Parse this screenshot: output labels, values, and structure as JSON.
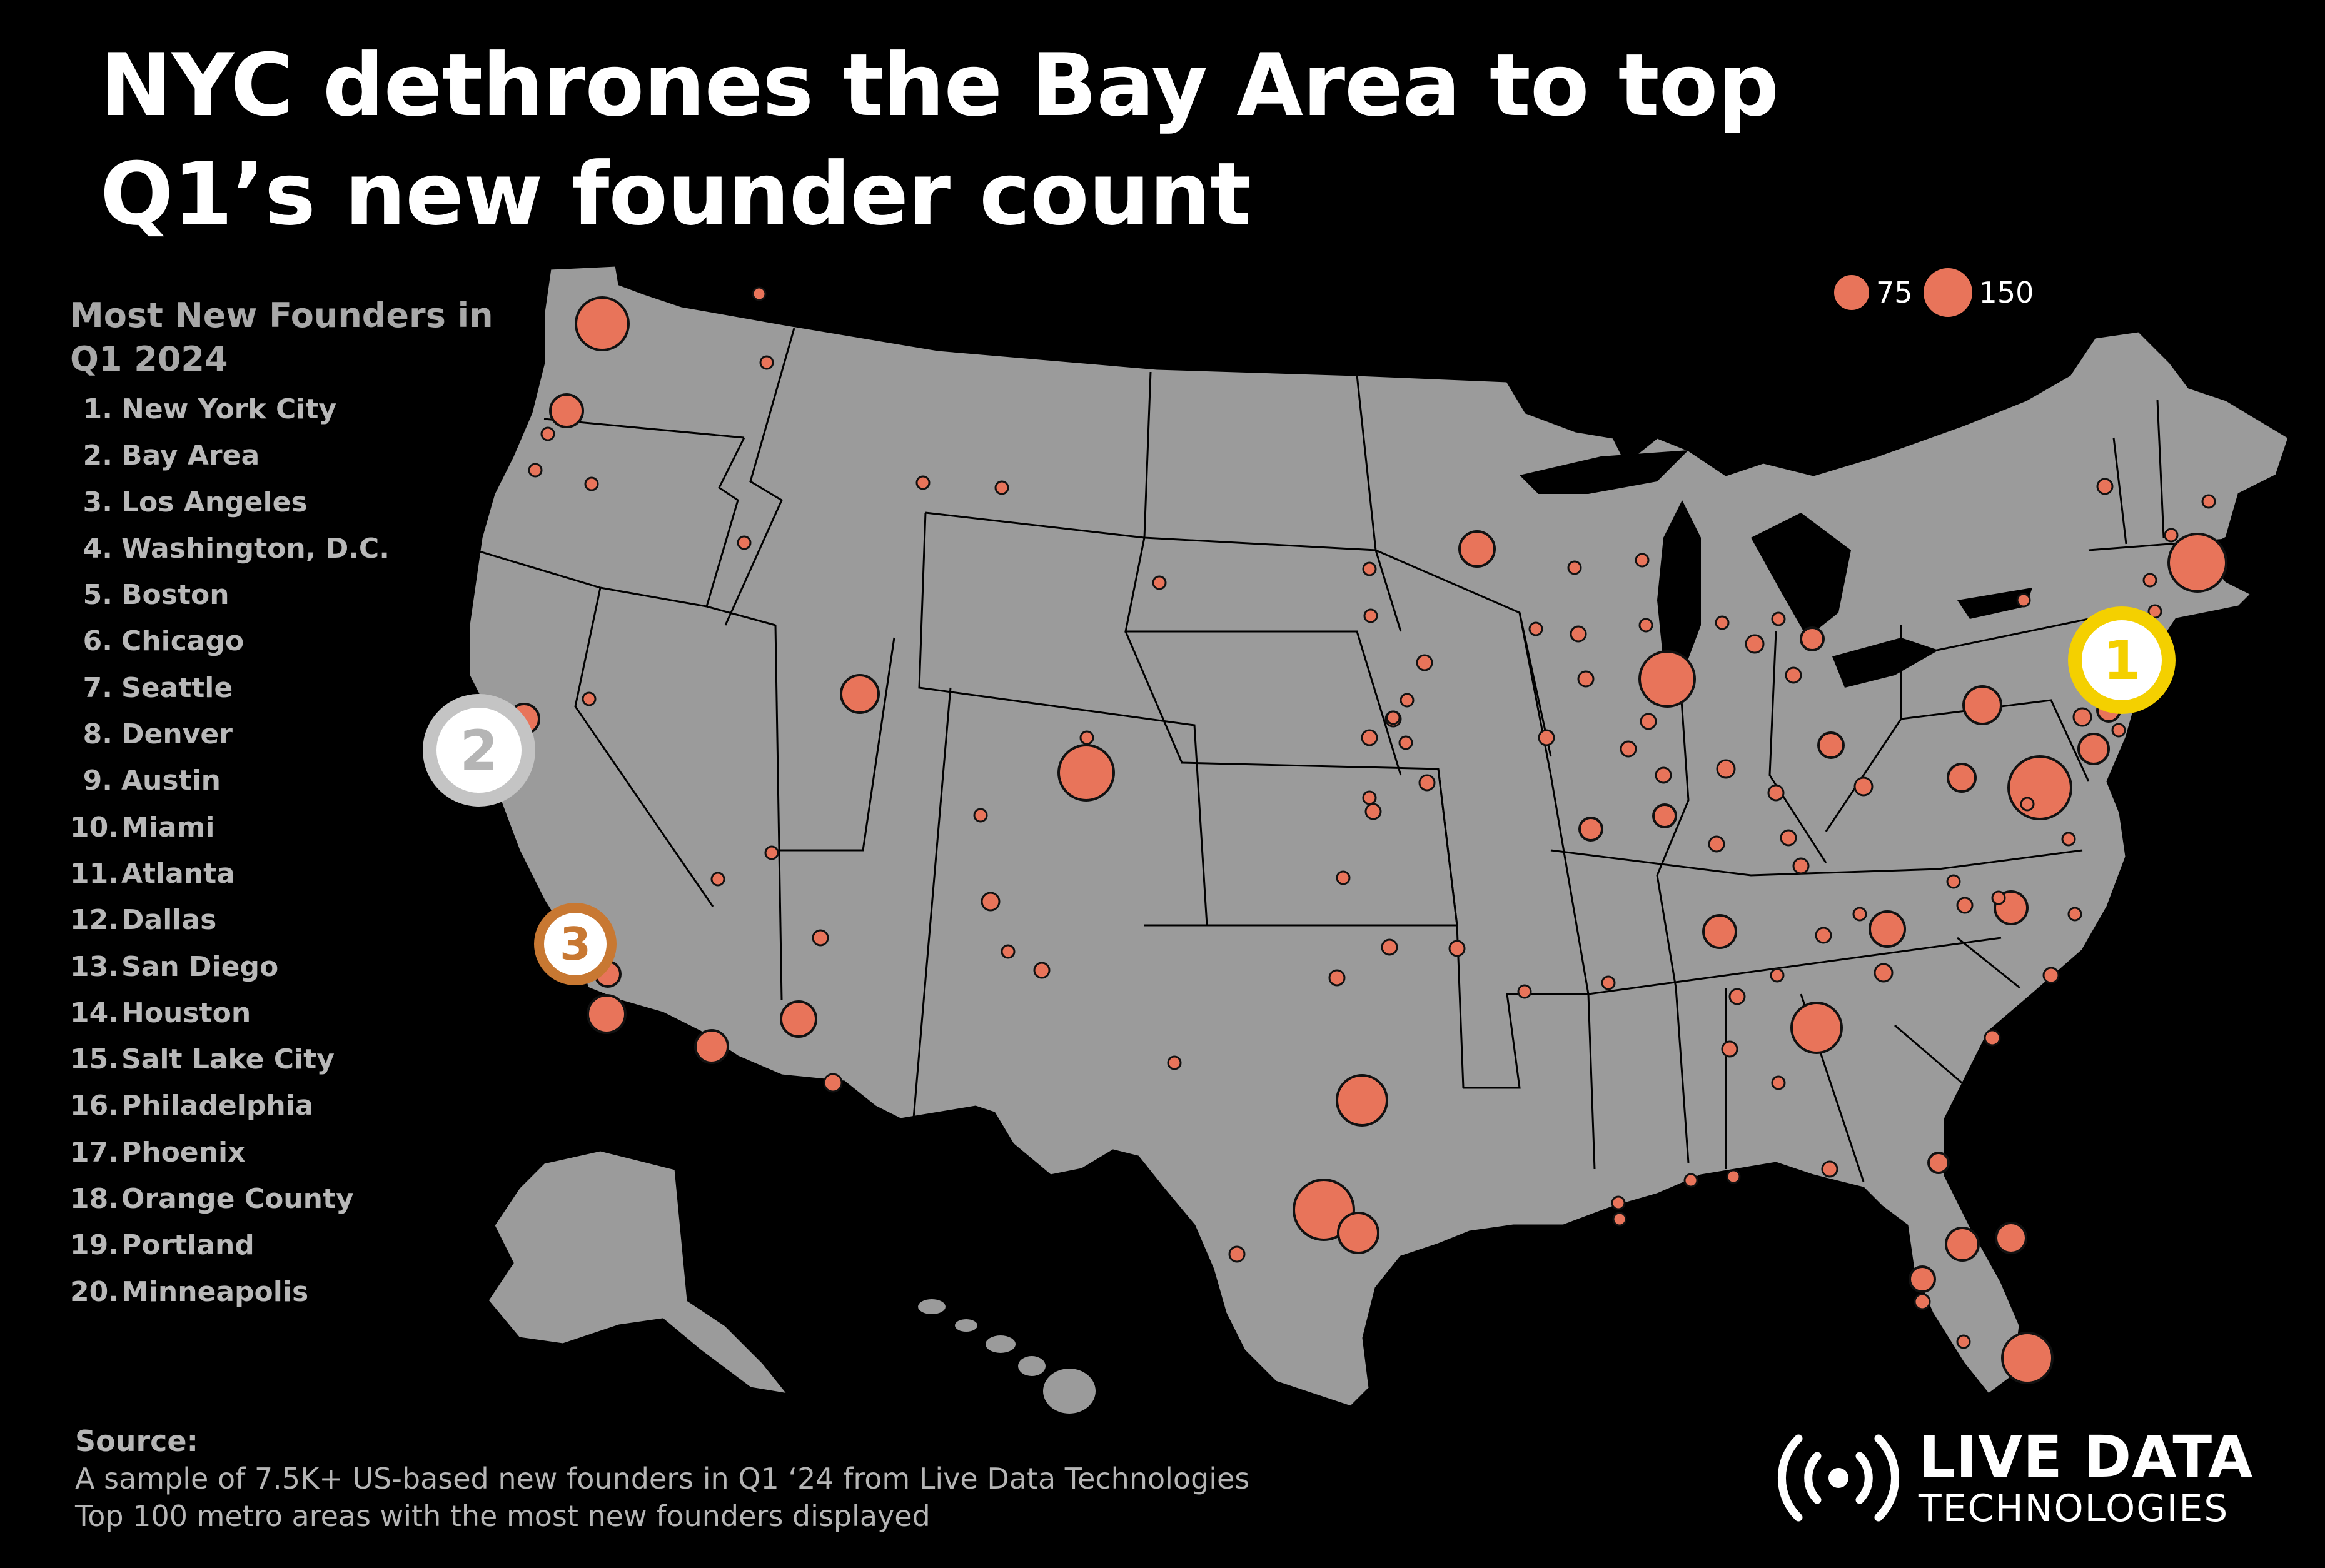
{
  "title": "NYC dethrones the Bay Area to top Q1’s new founder count",
  "ranking": {
    "heading_line1": "Most New Founders in",
    "heading_line2": "Q1 2024",
    "items": [
      {
        "rank": "1.",
        "name": "New York City"
      },
      {
        "rank": "2.",
        "name": "Bay Area"
      },
      {
        "rank": "3.",
        "name": "Los Angeles"
      },
      {
        "rank": "4.",
        "name": "Washington, D.C."
      },
      {
        "rank": "5.",
        "name": "Boston"
      },
      {
        "rank": "6.",
        "name": "Chicago"
      },
      {
        "rank": "7.",
        "name": "Seattle"
      },
      {
        "rank": "8.",
        "name": "Denver"
      },
      {
        "rank": "9.",
        "name": "Austin"
      },
      {
        "rank": "10.",
        "name": "Miami"
      },
      {
        "rank": "11.",
        "name": "Atlanta"
      },
      {
        "rank": "12.",
        "name": "Dallas"
      },
      {
        "rank": "13.",
        "name": "San Diego"
      },
      {
        "rank": "14.",
        "name": "Houston"
      },
      {
        "rank": "15.",
        "name": "Salt Lake City"
      },
      {
        "rank": "16.",
        "name": "Philadelphia"
      },
      {
        "rank": "17.",
        "name": "Phoenix"
      },
      {
        "rank": "18.",
        "name": "Orange County"
      },
      {
        "rank": "19.",
        "name": "Portland"
      },
      {
        "rank": "20.",
        "name": "Minneapolis"
      }
    ]
  },
  "legend": {
    "small_value": "75",
    "large_value": "150"
  },
  "markers": {
    "first": "1",
    "second": "2",
    "third": "3"
  },
  "source": {
    "label": "Source:",
    "line1": "A sample of 7.5K+ US-based new founders in Q1 ‘24 from Live Data Technologies",
    "line2": "Top 100 metro areas with the most new founders displayed"
  },
  "logo": {
    "line1": "LIVE DATA",
    "line2": "TECHNOLOGIES"
  },
  "colors": {
    "bubble": "#e8745a",
    "land": "#9b9b9b",
    "background": "#000000",
    "marker_1": "#f4d000",
    "marker_2": "#c4c4c4",
    "marker_3": "#c87832"
  }
}
